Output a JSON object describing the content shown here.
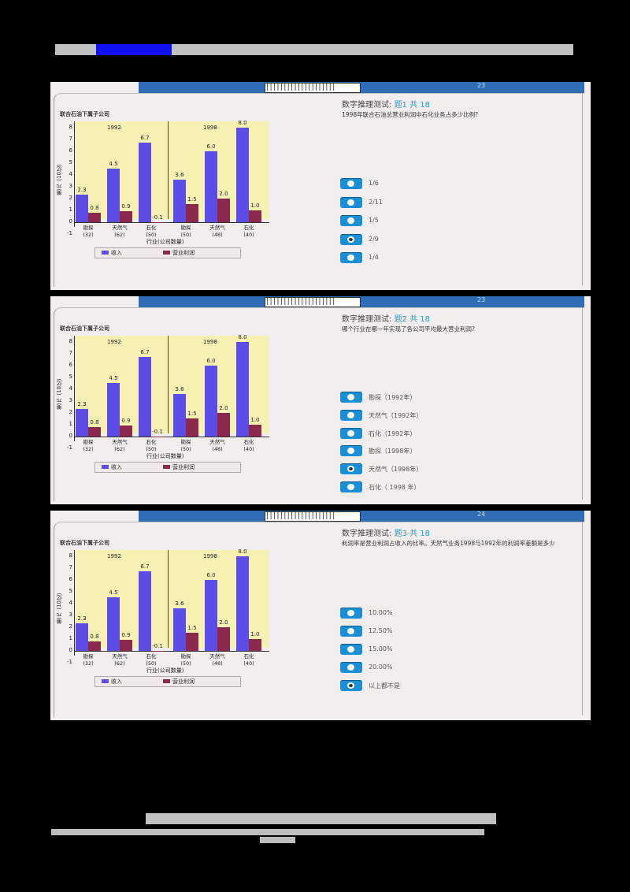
{
  "page": {
    "header_text_blurred": true,
    "footer_text_blurred": true
  },
  "chart_common": {
    "title": "联合石油下属子公司",
    "ylabel": "美元（10亿）",
    "xlabel": "行业(公司数量)",
    "yticks": [
      "8",
      "7",
      "6",
      "5",
      "4",
      "3",
      "2",
      "1",
      "0",
      "-1"
    ],
    "years": [
      "1992",
      "1998"
    ],
    "legend": {
      "revenue": "收入",
      "profit": "营业利润"
    },
    "colors": {
      "revenue": "#5b4de6",
      "profit": "#8b2a4e",
      "plot_bg": "#f7f2b4"
    }
  },
  "chart_data": {
    "type": "bar",
    "title": "联合石油下属子公司",
    "xlabel": "行业(公司数量)",
    "ylabel": "美元（10亿）",
    "ylim": [
      -1,
      8.5
    ],
    "groups": [
      "1992",
      "1998"
    ],
    "categories": [
      "勘探(32)",
      "天然气(62)",
      "石化(50)",
      "勘探(50)",
      "天然气(48)",
      "石化(40)"
    ],
    "series": [
      {
        "name": "收入",
        "values": [
          2.3,
          4.5,
          6.7,
          3.6,
          6.0,
          8.0
        ]
      },
      {
        "name": "营业利润",
        "values": [
          0.8,
          0.9,
          -0.1,
          1.5,
          2.0,
          1.0
        ]
      }
    ],
    "legend_position": "bottom"
  },
  "bars": {
    "cats": [
      {
        "name": "勘探",
        "count": "(32)",
        "rev": "2.3",
        "prof": "0.8"
      },
      {
        "name": "天然气",
        "count": "(62)",
        "rev": "4.5",
        "prof": "0.9"
      },
      {
        "name": "石化",
        "count": "(50)",
        "rev": "6.7",
        "prof": "-0.1"
      },
      {
        "name": "勘探",
        "count": "(50)",
        "rev": "3.6",
        "prof": "1.5"
      },
      {
        "name": "天然气",
        "count": "(48)",
        "rev": "6.0",
        "prof": "2.0"
      },
      {
        "name": "石化",
        "count": "(40)",
        "rev": "8.0",
        "prof": "1.0"
      }
    ]
  },
  "panels": [
    {
      "topbar_barcode": "||||||||||||||||||||",
      "topbar_num": "23",
      "head_prefix": "数字推理测试: ",
      "head_q": "题1 共 18",
      "question": "1998年联合石油总营业利润中石化业务占多少比例?",
      "options": [
        "1/6",
        "2/11",
        "1/5",
        "2/9",
        "1/4"
      ],
      "selected": 3
    },
    {
      "topbar_barcode": "||||||||||||||||||||",
      "topbar_num": "23",
      "head_prefix": "数字推理测试: ",
      "head_q": "题2 共 18",
      "question": "哪个行业在哪一年实现了各公司平均最大营业利润?",
      "options": [
        "勘探（1992年）",
        "天然气（1992年）",
        "石化（1992年）",
        "勘探（1998年）",
        "天然气（1998年）",
        "石化（ 1998 年）"
      ],
      "selected": 4
    },
    {
      "topbar_barcode": "||||||||||||||||||||",
      "topbar_num": "24",
      "head_prefix": "数字推理测试: ",
      "head_q": "题3 共 18",
      "question": "利润率是营业利润占收入的比率。天然气业务1998与1992年的利润率差额是多少",
      "options": [
        "10.00%",
        "12.50%",
        "15.00%",
        "20.00%",
        "以上都不是"
      ],
      "selected": 4
    }
  ]
}
